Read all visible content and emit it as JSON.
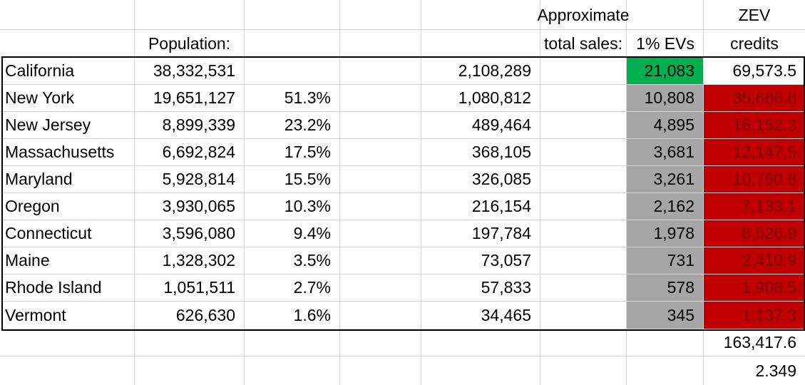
{
  "header": {
    "population": "Population:",
    "sales_line1": "Approximate",
    "sales_line2": "total sales:",
    "evs": "1% EVs",
    "zev_line1": "ZEV",
    "zev_line2": "credits"
  },
  "table": {
    "rows": [
      {
        "state": "California",
        "population": "38,332,531",
        "sales": "2,108,289",
        "evs": "21,083",
        "credits": "69,573.5"
      },
      {
        "state": "New York",
        "population": "19,651,127",
        "share": "51.3%",
        "sales": "1,080,812",
        "evs": "10,808",
        "credits": "35,666.8"
      },
      {
        "state": "New Jersey",
        "population": "8,899,339",
        "share": "23.2%",
        "sales": "489,464",
        "evs": "4,895",
        "credits": "16,152.3"
      },
      {
        "state": "Massachusetts",
        "population": "6,692,824",
        "share": "17.5%",
        "sales": "368,105",
        "evs": "3,681",
        "credits": "12,147.5"
      },
      {
        "state": "Maryland",
        "population": "5,928,814",
        "share": "15.5%",
        "sales": "326,085",
        "evs": "3,261",
        "credits": "10,760.8"
      },
      {
        "state": "Oregon",
        "population": "3,930,065",
        "share": "10.3%",
        "sales": "216,154",
        "evs": "2,162",
        "credits": "7,133.1"
      },
      {
        "state": "Connecticut",
        "population": "3,596,080",
        "share": "9.4%",
        "sales": "197,784",
        "evs": "1,978",
        "credits": "6,526.9"
      },
      {
        "state": "Maine",
        "population": "1,328,302",
        "share": "3.5%",
        "sales": "73,057",
        "evs": "731",
        "credits": "2,410.9"
      },
      {
        "state": "Rhode Island",
        "population": "1,051,511",
        "share": "2.7%",
        "sales": "57,833",
        "evs": "578",
        "credits": "1,908.5"
      },
      {
        "state": "Vermont",
        "population": "626,630",
        "share": "1.6%",
        "sales": "34,465",
        "evs": "345",
        "credits": "1,137.3"
      }
    ]
  },
  "totals": {
    "credits_sum": "163,417.6",
    "ratio": "2.349"
  }
}
